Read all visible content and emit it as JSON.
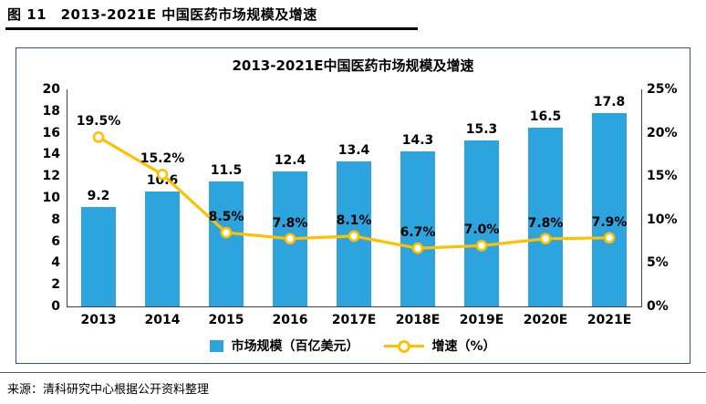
{
  "figure": {
    "caption": "图 11　2013-2021E 中国医药市场规模及增速",
    "source": "来源：清科研究中心根据公开资料整理"
  },
  "chart_data": {
    "type": "combo_bar_line",
    "title": "2013-2021E中国医药市场规模及增速",
    "categories": [
      "2013",
      "2014",
      "2015",
      "2016",
      "2017E",
      "2018E",
      "2019E",
      "2020E",
      "2021E"
    ],
    "series": [
      {
        "name": "市场规模（百亿美元）",
        "type": "bar",
        "axis": "left",
        "color": "#2EA4DF",
        "values": [
          9.2,
          10.6,
          11.5,
          12.4,
          13.4,
          14.3,
          15.3,
          16.5,
          17.8
        ],
        "labels": [
          "9.2",
          "10.6",
          "11.5",
          "12.4",
          "13.4",
          "14.3",
          "15.3",
          "16.5",
          "17.8"
        ]
      },
      {
        "name": "增速（%）",
        "type": "line",
        "axis": "right",
        "color": "#FFC000",
        "marker": "open-circle",
        "values": [
          19.5,
          15.2,
          8.5,
          7.8,
          8.1,
          6.7,
          7.0,
          7.8,
          7.9
        ],
        "labels": [
          "19.5%",
          "15.2%",
          "8.5%",
          "7.8%",
          "8.1%",
          "6.7%",
          "7.0%",
          "7.8%",
          "7.9%"
        ]
      }
    ],
    "left_axis": {
      "min": 0,
      "max": 20,
      "step": 2,
      "ticks": [
        "20",
        "18",
        "16",
        "14",
        "12",
        "10",
        "8",
        "6",
        "4",
        "2",
        "0"
      ]
    },
    "right_axis": {
      "min": 0,
      "max": 25,
      "step": 5,
      "ticks": [
        "25%",
        "20%",
        "15%",
        "10%",
        "5%",
        "0%"
      ]
    },
    "legend_position": "bottom",
    "grid": false
  }
}
